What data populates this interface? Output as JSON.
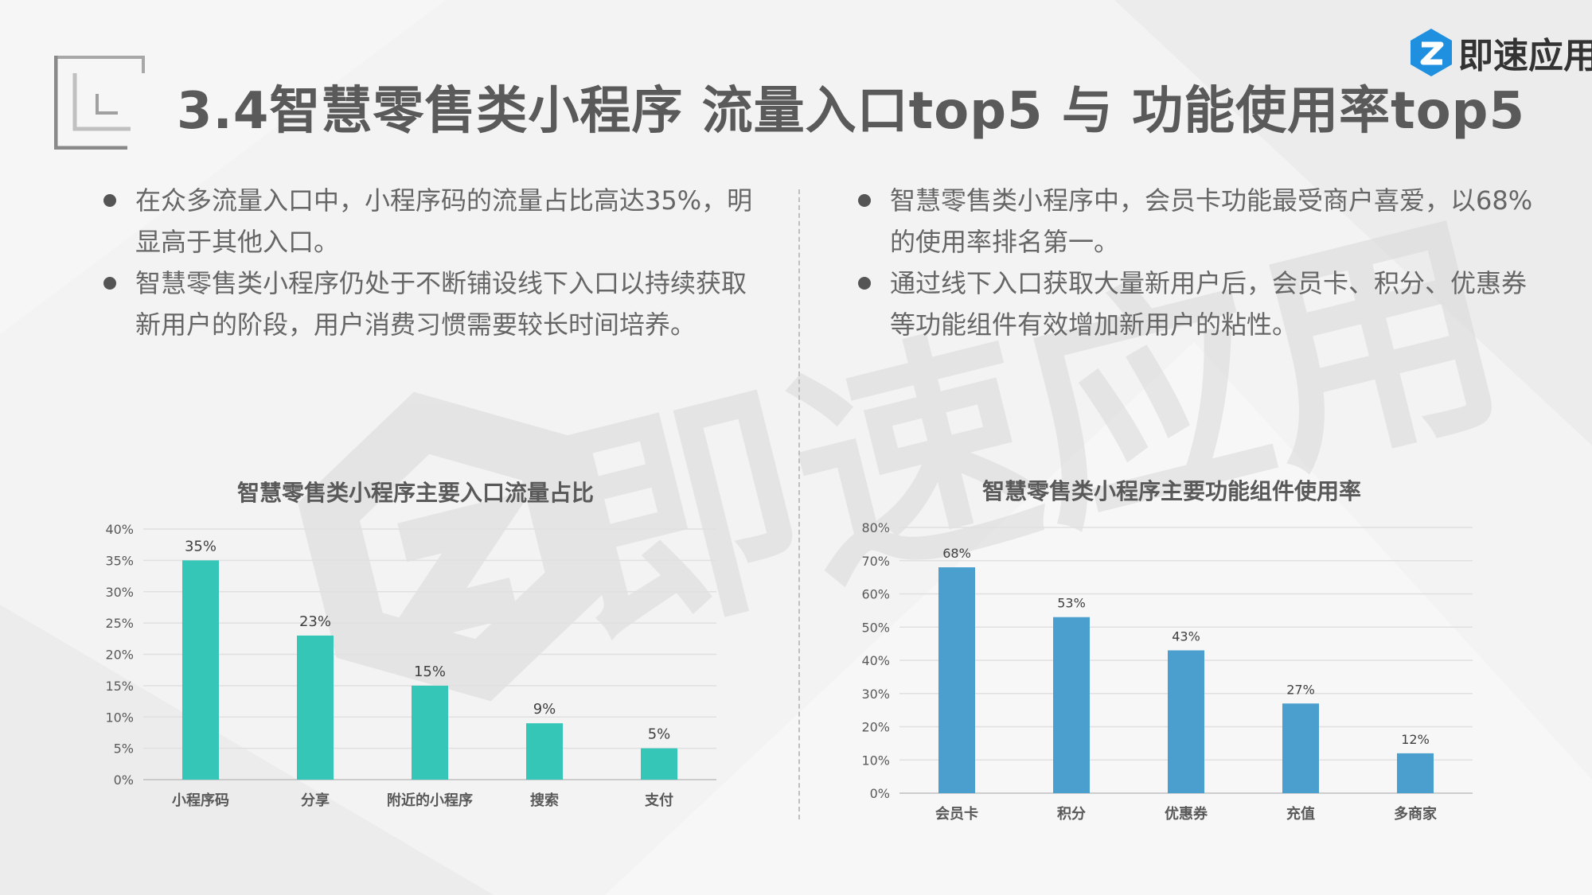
{
  "header": {
    "title": "3.4智慧零售类小程序 流量入口top5 与 功能使用率top5",
    "logo_text": "即速应用",
    "watermark_text": "即速应用"
  },
  "left_bullets": [
    "在众多流量入口中，小程序码的流量占比高达35%，明显高于其他入口。",
    "智慧零售类小程序仍处于不断铺设线下入口以持续获取新用户的阶段，用户消费习惯需要较长时间培养。"
  ],
  "right_bullets": [
    "智慧零售类小程序中，会员卡功能最受商户喜爱，以68%的使用率排名第一。",
    "通过线下入口获取大量新用户后，会员卡、积分、优惠券等功能组件有效增加新用户的粘性。"
  ],
  "chart_data": [
    {
      "type": "bar",
      "title": "智慧零售类小程序主要入口流量占比",
      "categories": [
        "小程序码",
        "分享",
        "附近的小程序",
        "搜索",
        "支付"
      ],
      "values": [
        35,
        23,
        15,
        9,
        5
      ],
      "value_labels": [
        "35%",
        "23%",
        "15%",
        "9%",
        "5%"
      ],
      "ylim": [
        0,
        40
      ],
      "yticks": [
        "0%",
        "5%",
        "10%",
        "15%",
        "20%",
        "25%",
        "30%",
        "35%",
        "40%"
      ],
      "color": "#36c6b8",
      "grid": true
    },
    {
      "type": "bar",
      "title": "智慧零售类小程序主要功能组件使用率",
      "categories": [
        "会员卡",
        "积分",
        "优惠券",
        "充值",
        "多商家"
      ],
      "values": [
        68,
        53,
        43,
        27,
        12
      ],
      "value_labels": [
        "68%",
        "53%",
        "43%",
        "27%",
        "12%"
      ],
      "ylim": [
        0,
        80
      ],
      "yticks": [
        "0%",
        "10%",
        "20%",
        "30%",
        "40%",
        "50%",
        "60%",
        "70%",
        "80%"
      ],
      "color": "#4a9fcf",
      "grid": true
    }
  ]
}
